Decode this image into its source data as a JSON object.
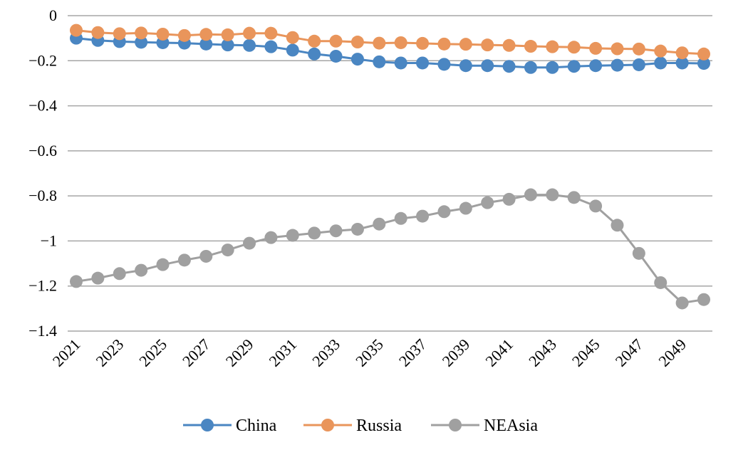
{
  "chart_data": {
    "type": "line",
    "title": "",
    "xlabel": "",
    "ylabel": "",
    "x": [
      2021,
      2022,
      2023,
      2024,
      2025,
      2026,
      2027,
      2028,
      2029,
      2030,
      2031,
      2032,
      2033,
      2034,
      2035,
      2036,
      2037,
      2038,
      2039,
      2040,
      2041,
      2042,
      2043,
      2044,
      2045,
      2046,
      2047,
      2048,
      2049,
      2050
    ],
    "x_tick_labels": [
      "2021",
      "2023",
      "2025",
      "2027",
      "2029",
      "2031",
      "2033",
      "2035",
      "2037",
      "2039",
      "2041",
      "2043",
      "2045",
      "2047",
      "2049"
    ],
    "y_tick_values": [
      0,
      -0.2,
      -0.4,
      -0.6,
      -0.8,
      -1,
      -1.2,
      -1.4
    ],
    "y_tick_labels": [
      "0",
      "−0.2",
      "−0.4",
      "−0.6",
      "−0.8",
      "−1",
      "−1.2",
      "−1.4"
    ],
    "ylim": [
      -1.4,
      0
    ],
    "grid": "horizontal",
    "legend_position": "bottom",
    "series": [
      {
        "name": "China",
        "color": "#4a86c2",
        "values": [
          -0.1,
          -0.11,
          -0.115,
          -0.118,
          -0.12,
          -0.122,
          -0.126,
          -0.13,
          -0.132,
          -0.138,
          -0.153,
          -0.17,
          -0.18,
          -0.193,
          -0.205,
          -0.21,
          -0.21,
          -0.216,
          -0.222,
          -0.222,
          -0.225,
          -0.23,
          -0.23,
          -0.225,
          -0.222,
          -0.22,
          -0.218,
          -0.21,
          -0.21,
          -0.212
        ]
      },
      {
        "name": "Russia",
        "color": "#e9955b",
        "values": [
          -0.065,
          -0.075,
          -0.08,
          -0.077,
          -0.082,
          -0.088,
          -0.083,
          -0.085,
          -0.078,
          -0.078,
          -0.097,
          -0.113,
          -0.113,
          -0.117,
          -0.122,
          -0.12,
          -0.123,
          -0.126,
          -0.127,
          -0.13,
          -0.132,
          -0.136,
          -0.138,
          -0.14,
          -0.145,
          -0.147,
          -0.148,
          -0.157,
          -0.165,
          -0.17
        ]
      },
      {
        "name": "NEAsia",
        "color": "#a0a0a0",
        "values": [
          -1.18,
          -1.165,
          -1.145,
          -1.13,
          -1.105,
          -1.085,
          -1.068,
          -1.04,
          -1.01,
          -0.985,
          -0.975,
          -0.965,
          -0.955,
          -0.948,
          -0.925,
          -0.9,
          -0.89,
          -0.87,
          -0.855,
          -0.83,
          -0.815,
          -0.795,
          -0.795,
          -0.807,
          -0.845,
          -0.93,
          -1.055,
          -1.185,
          -1.275,
          -1.26
        ]
      }
    ]
  }
}
